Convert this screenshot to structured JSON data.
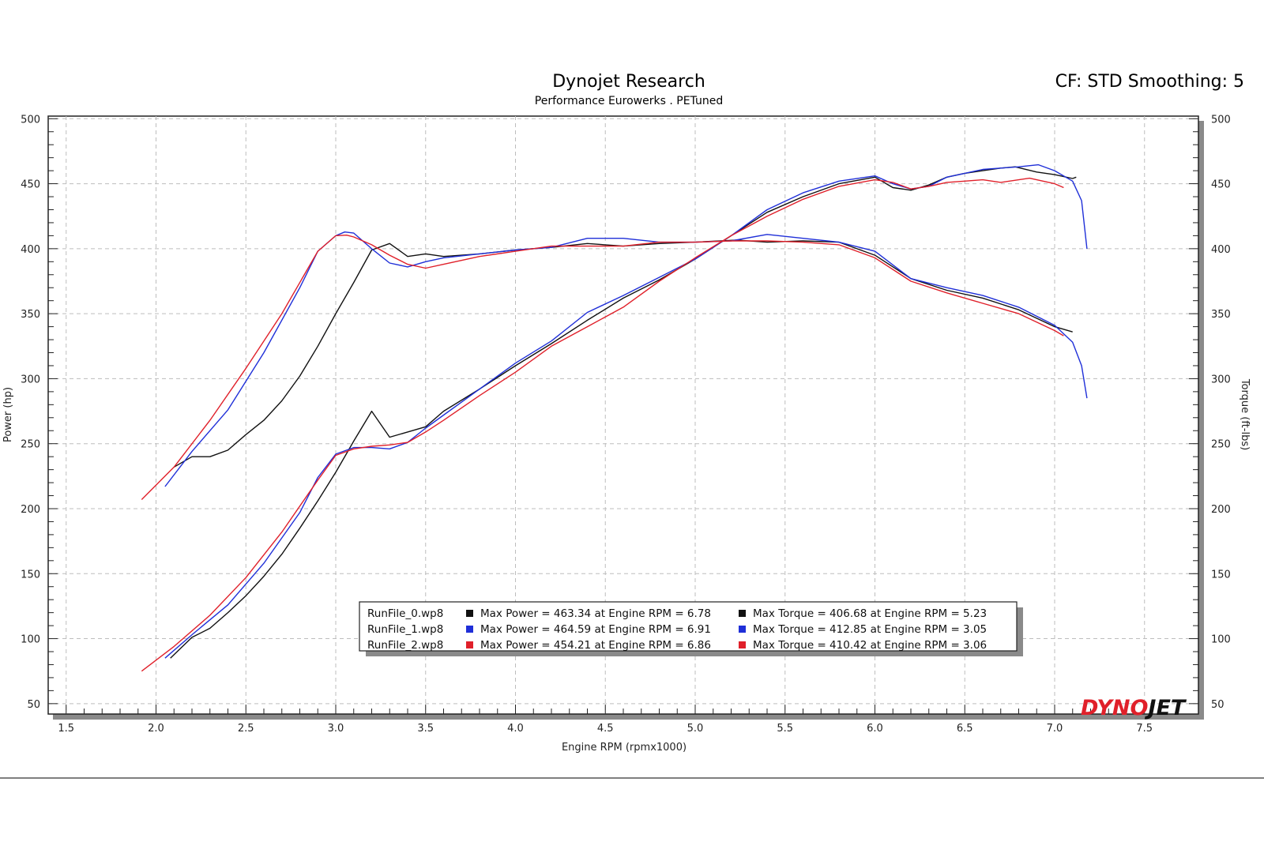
{
  "header": {
    "title": "Dynojet Research",
    "subtitle": "Performance Eurowerks . PETuned",
    "cf_label": "CF: STD Smoothing: 5"
  },
  "logo": {
    "text1": "DYNO",
    "text2": "JET",
    "color1": "#e0202a",
    "color2": "#111111"
  },
  "chart_data": {
    "type": "line",
    "title": "Dynojet Research",
    "subtitle": "Performance Eurowerks . PETuned",
    "xlabel": "Engine RPM (rpmx1000)",
    "ylabel": "Power (hp)",
    "y2label": "Torque (ft-lbs)",
    "xlim": [
      1.4,
      7.8
    ],
    "ylim": [
      42,
      502
    ],
    "xticks": [
      "1.5",
      "2.0",
      "2.5",
      "3.0",
      "3.5",
      "4.0",
      "4.5",
      "5.0",
      "5.5",
      "6.0",
      "6.5",
      "7.0",
      "7.5"
    ],
    "xtick_values": [
      1.5,
      2.0,
      2.5,
      3.0,
      3.5,
      4.0,
      4.5,
      5.0,
      5.5,
      6.0,
      6.5,
      7.0,
      7.5
    ],
    "yticks": [
      "50",
      "100",
      "150",
      "200",
      "250",
      "300",
      "350",
      "400",
      "450",
      "500"
    ],
    "ytick_values": [
      50,
      100,
      150,
      200,
      250,
      300,
      350,
      400,
      450,
      500
    ],
    "grid": true,
    "legend_placement": "bottom-center",
    "series": [
      {
        "name": "RunFile_0.wp8",
        "measure": "power",
        "color": "#111111",
        "x": [
          2.08,
          2.2,
          2.3,
          2.4,
          2.5,
          2.6,
          2.7,
          2.8,
          2.9,
          3.0,
          3.1,
          3.2,
          3.3,
          3.4,
          3.5,
          3.6,
          3.8,
          4.0,
          4.2,
          4.4,
          4.6,
          4.8,
          5.0,
          5.2,
          5.4,
          5.6,
          5.8,
          6.0,
          6.1,
          6.2,
          6.3,
          6.4,
          6.5,
          6.6,
          6.7,
          6.78,
          6.9,
          7.0,
          7.1,
          7.12
        ],
        "y": [
          85,
          101,
          108,
          120,
          133,
          148,
          165,
          185,
          206,
          228,
          252,
          275,
          255,
          259,
          263,
          275,
          292,
          310,
          327,
          345,
          362,
          376,
          392,
          410,
          428,
          440,
          450,
          455,
          447,
          445,
          449,
          455,
          458,
          460,
          462,
          463,
          459,
          457,
          454,
          455
        ]
      },
      {
        "name": "RunFile_0.wp8",
        "measure": "torque",
        "color": "#111111",
        "x": [
          2.1,
          2.2,
          2.3,
          2.4,
          2.5,
          2.6,
          2.7,
          2.8,
          2.9,
          3.0,
          3.1,
          3.2,
          3.3,
          3.4,
          3.5,
          3.6,
          3.8,
          4.0,
          4.2,
          4.4,
          4.6,
          4.8,
          5.0,
          5.23,
          5.4,
          5.6,
          5.8,
          6.0,
          6.2,
          6.4,
          6.6,
          6.8,
          7.0,
          7.1
        ],
        "y": [
          232,
          240,
          240,
          245,
          257,
          268,
          283,
          302,
          325,
          350,
          374,
          399,
          404,
          394,
          396,
          394,
          396,
          399,
          401,
          404,
          402,
          404,
          405,
          406.68,
          405,
          406,
          405,
          395,
          377,
          368,
          362,
          353,
          340,
          336
        ]
      },
      {
        "name": "RunFile_1.wp8",
        "measure": "power",
        "color": "#1f2fd8",
        "x": [
          2.05,
          2.2,
          2.4,
          2.6,
          2.8,
          2.9,
          3.0,
          3.1,
          3.2,
          3.3,
          3.4,
          3.5,
          3.6,
          3.8,
          4.0,
          4.2,
          4.4,
          4.6,
          4.8,
          5.0,
          5.2,
          5.4,
          5.6,
          5.8,
          6.0,
          6.1,
          6.2,
          6.3,
          6.4,
          6.5,
          6.6,
          6.7,
          6.8,
          6.91,
          7.0,
          7.1,
          7.15,
          7.18
        ],
        "y": [
          85,
          103,
          126,
          158,
          197,
          224,
          242,
          247,
          247,
          246,
          251,
          262,
          272,
          292,
          312,
          329,
          351,
          364,
          378,
          392,
          410,
          430,
          443,
          452,
          456,
          450,
          446,
          448,
          455,
          458,
          461,
          462,
          463,
          464.59,
          460,
          452,
          437,
          400
        ]
      },
      {
        "name": "RunFile_1.wp8",
        "measure": "torque",
        "color": "#1f2fd8",
        "x": [
          2.05,
          2.2,
          2.4,
          2.6,
          2.8,
          2.9,
          3.0,
          3.05,
          3.1,
          3.2,
          3.3,
          3.4,
          3.5,
          3.6,
          3.8,
          4.0,
          4.2,
          4.4,
          4.6,
          4.8,
          5.0,
          5.2,
          5.4,
          5.6,
          5.8,
          6.0,
          6.2,
          6.4,
          6.6,
          6.8,
          7.0,
          7.1,
          7.15,
          7.18
        ],
        "y": [
          217,
          244,
          276,
          320,
          370,
          398,
          410,
          412.85,
          412,
          400,
          389,
          386,
          390,
          393,
          396,
          399,
          401,
          408,
          408,
          405,
          405,
          406,
          411,
          408,
          405,
          398,
          377,
          370,
          364,
          355,
          341,
          328,
          310,
          285
        ]
      },
      {
        "name": "RunFile_2.wp8",
        "measure": "power",
        "color": "#e0202a",
        "x": [
          1.92,
          2.1,
          2.3,
          2.5,
          2.7,
          2.9,
          3.0,
          3.1,
          3.2,
          3.3,
          3.4,
          3.5,
          3.6,
          3.8,
          4.0,
          4.2,
          4.4,
          4.6,
          4.8,
          5.0,
          5.2,
          5.4,
          5.6,
          5.8,
          6.0,
          6.1,
          6.2,
          6.3,
          6.4,
          6.5,
          6.6,
          6.7,
          6.86,
          6.9,
          7.0,
          7.05
        ],
        "y": [
          75,
          94,
          118,
          147,
          182,
          222,
          241,
          246,
          248,
          249,
          251,
          259,
          268,
          287,
          305,
          325,
          340,
          355,
          375,
          393,
          410,
          425,
          438,
          448,
          453,
          451,
          446,
          448,
          451,
          452,
          453,
          451,
          454.21,
          453,
          450,
          447
        ]
      },
      {
        "name": "RunFile_2.wp8",
        "measure": "torque",
        "color": "#e0202a",
        "x": [
          1.92,
          2.1,
          2.3,
          2.5,
          2.7,
          2.9,
          3.0,
          3.06,
          3.1,
          3.2,
          3.3,
          3.4,
          3.5,
          3.6,
          3.8,
          4.0,
          4.2,
          4.4,
          4.6,
          4.8,
          5.0,
          5.2,
          5.4,
          5.6,
          5.8,
          6.0,
          6.2,
          6.4,
          6.6,
          6.8,
          7.0,
          7.05
        ],
        "y": [
          207,
          232,
          268,
          308,
          350,
          398,
          410,
          410.42,
          409,
          403,
          395,
          388,
          385,
          388,
          394,
          398,
          402,
          402,
          402,
          405,
          405,
          406,
          406,
          405,
          403,
          393,
          375,
          366,
          358,
          350,
          337,
          333
        ]
      }
    ]
  },
  "legend": {
    "rows": [
      {
        "file": "RunFile_0.wp8",
        "color": "#111111",
        "power": "Max Power = 463.34 at Engine RPM = 6.78",
        "torque": "Max Torque = 406.68 at Engine RPM = 5.23"
      },
      {
        "file": "RunFile_1.wp8",
        "color": "#1f2fd8",
        "power": "Max Power = 464.59 at Engine RPM = 6.91",
        "torque": "Max Torque = 412.85 at Engine RPM = 3.05"
      },
      {
        "file": "RunFile_2.wp8",
        "color": "#e0202a",
        "power": "Max Power = 454.21 at Engine RPM = 6.86",
        "torque": "Max Torque = 410.42 at Engine RPM = 3.06"
      }
    ]
  }
}
